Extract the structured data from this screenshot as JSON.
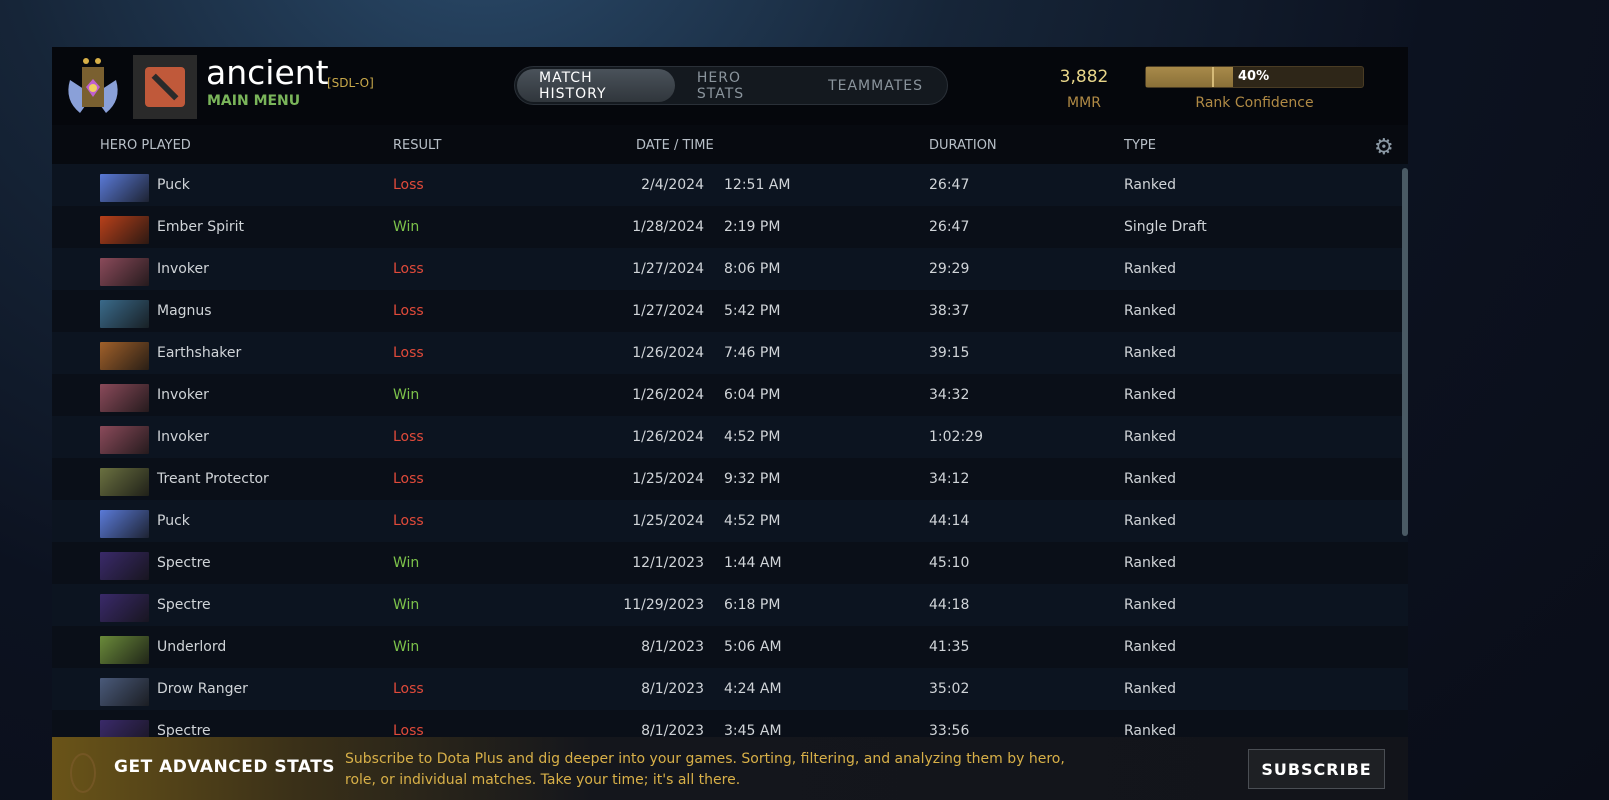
{
  "profile": {
    "name": "ancient",
    "tag": "[SDL-O]",
    "main_menu": "MAIN MENU"
  },
  "tabs": [
    {
      "label": "MATCH HISTORY",
      "active": true
    },
    {
      "label": "HERO STATS"
    },
    {
      "label": "TEAMMATES"
    }
  ],
  "mmr": {
    "value": "3,882",
    "label": "MMR"
  },
  "confidence": {
    "percent": 40,
    "text": "40%",
    "label": "Rank Confidence"
  },
  "columns": {
    "hero": "HERO PLAYED",
    "result": "RESULT",
    "date": "DATE / TIME",
    "duration": "DURATION",
    "type": "TYPE"
  },
  "colors": {
    "win": "#7cc24a",
    "loss": "#e04a3a"
  },
  "matches": [
    {
      "hero": "Puck",
      "result": "Loss",
      "date": "2/4/2024",
      "time": "12:51 AM",
      "duration": "26:47",
      "type": "Ranked",
      "c": "#5a7ad8"
    },
    {
      "hero": "Ember Spirit",
      "result": "Win",
      "date": "1/28/2024",
      "time": "2:19 PM",
      "duration": "26:47",
      "type": "Single Draft",
      "c": "#b8401a"
    },
    {
      "hero": "Invoker",
      "result": "Loss",
      "date": "1/27/2024",
      "time": "8:06 PM",
      "duration": "29:29",
      "type": "Ranked",
      "c": "#8a4a5a"
    },
    {
      "hero": "Magnus",
      "result": "Loss",
      "date": "1/27/2024",
      "time": "5:42 PM",
      "duration": "38:37",
      "type": "Ranked",
      "c": "#3a6a8a"
    },
    {
      "hero": "Earthshaker",
      "result": "Loss",
      "date": "1/26/2024",
      "time": "7:46 PM",
      "duration": "39:15",
      "type": "Ranked",
      "c": "#a0602a"
    },
    {
      "hero": "Invoker",
      "result": "Win",
      "date": "1/26/2024",
      "time": "6:04 PM",
      "duration": "34:32",
      "type": "Ranked",
      "c": "#8a4a5a"
    },
    {
      "hero": "Invoker",
      "result": "Loss",
      "date": "1/26/2024",
      "time": "4:52 PM",
      "duration": "1:02:29",
      "type": "Ranked",
      "c": "#8a4a5a"
    },
    {
      "hero": "Treant Protector",
      "result": "Loss",
      "date": "1/25/2024",
      "time": "9:32 PM",
      "duration": "34:12",
      "type": "Ranked",
      "c": "#6a7040"
    },
    {
      "hero": "Puck",
      "result": "Loss",
      "date": "1/25/2024",
      "time": "4:52 PM",
      "duration": "44:14",
      "type": "Ranked",
      "c": "#5a7ad8"
    },
    {
      "hero": "Spectre",
      "result": "Win",
      "date": "12/1/2023",
      "time": "1:44 AM",
      "duration": "45:10",
      "type": "Ranked",
      "c": "#3a2a6a"
    },
    {
      "hero": "Spectre",
      "result": "Win",
      "date": "11/29/2023",
      "time": "6:18 PM",
      "duration": "44:18",
      "type": "Ranked",
      "c": "#3a2a6a"
    },
    {
      "hero": "Underlord",
      "result": "Win",
      "date": "8/1/2023",
      "time": "5:06 AM",
      "duration": "41:35",
      "type": "Ranked",
      "c": "#6a8a3a"
    },
    {
      "hero": "Drow Ranger",
      "result": "Loss",
      "date": "8/1/2023",
      "time": "4:24 AM",
      "duration": "35:02",
      "type": "Ranked",
      "c": "#4a5a7a"
    },
    {
      "hero": "Spectre",
      "result": "Loss",
      "date": "8/1/2023",
      "time": "3:45 AM",
      "duration": "33:56",
      "type": "Ranked",
      "c": "#3a2a6a"
    }
  ],
  "banner": {
    "title": "GET ADVANCED STATS",
    "text": "Subscribe to Dota Plus and dig deeper into your games. Sorting, filtering, and analyzing them by hero, role, or individual matches. Take your time; it's all there.",
    "button": "SUBSCRIBE"
  }
}
